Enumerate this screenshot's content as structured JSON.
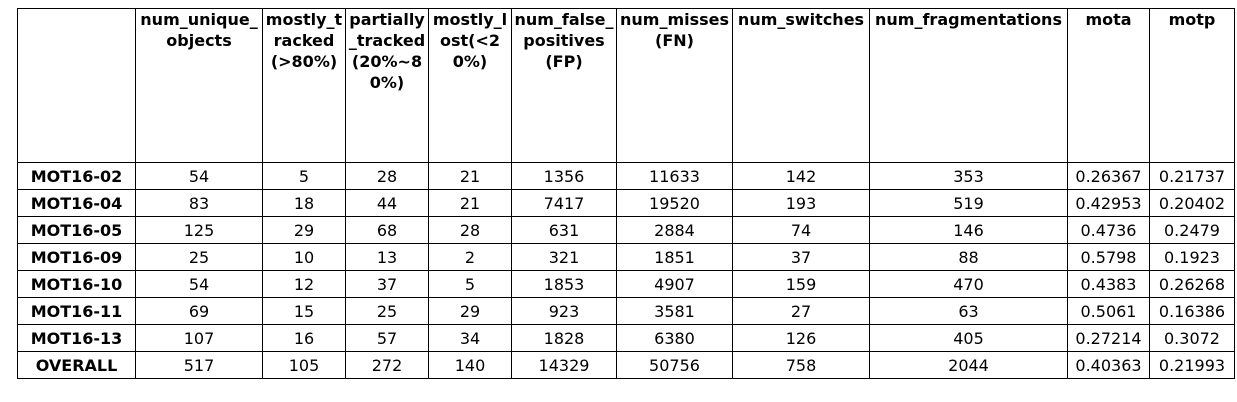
{
  "table": {
    "columns": [
      "",
      "num_unique_objects",
      "mostly_tracked(>80%)",
      "partially_tracked(20%~80%)",
      "mostly_lost(<20%)",
      "num_false_positives (FP)",
      "num_misses (FN)",
      "num_switches",
      "num_fragmentations",
      "mota",
      "motp"
    ],
    "rows": [
      [
        "MOT16-02",
        "54",
        "5",
        "28",
        "21",
        "1356",
        "11633",
        "142",
        "353",
        "0.26367",
        "0.21737"
      ],
      [
        "MOT16-04",
        "83",
        "18",
        "44",
        "21",
        "7417",
        "19520",
        "193",
        "519",
        "0.42953",
        "0.20402"
      ],
      [
        "MOT16-05",
        "125",
        "29",
        "68",
        "28",
        "631",
        "2884",
        "74",
        "146",
        "0.4736",
        "0.2479"
      ],
      [
        "MOT16-09",
        "25",
        "10",
        "13",
        "2",
        "321",
        "1851",
        "37",
        "88",
        "0.5798",
        "0.1923"
      ],
      [
        "MOT16-10",
        "54",
        "12",
        "37",
        "5",
        "1853",
        "4907",
        "159",
        "470",
        "0.4383",
        "0.26268"
      ],
      [
        "MOT16-11",
        "69",
        "15",
        "25",
        "29",
        "923",
        "3581",
        "27",
        "63",
        "0.5061",
        "0.16386"
      ],
      [
        "MOT16-13",
        "107",
        "16",
        "57",
        "34",
        "1828",
        "6380",
        "126",
        "405",
        "0.27214",
        "0.3072"
      ],
      [
        "OVERALL",
        "517",
        "105",
        "272",
        "140",
        "14329",
        "50756",
        "758",
        "2044",
        "0.40363",
        "0.21993"
      ]
    ]
  }
}
